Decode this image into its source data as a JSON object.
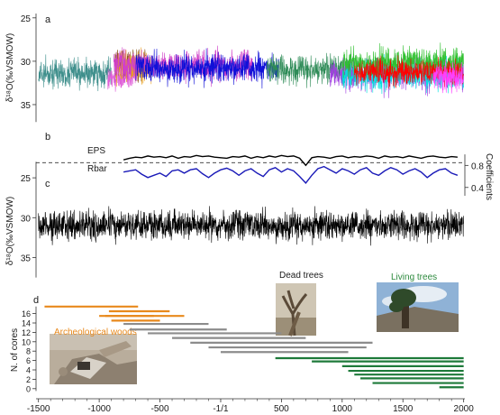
{
  "chart_data": [
    {
      "panel": "a",
      "type": "line",
      "ylabel": "δ¹⁸O(‰VSMOW)",
      "y_ticks": [
        25,
        30,
        35
      ],
      "ylim": [
        37.5,
        24.5
      ],
      "y_inverted": true,
      "xlim": [
        -1520,
        2010
      ],
      "series": [
        {
          "start": -1500,
          "end": -900,
          "mean": 31.4,
          "amp": 2.8,
          "color": "#3f8f8c"
        },
        {
          "start": -870,
          "end": -620,
          "mean": 30.3,
          "amp": 3.4,
          "color": "#8b5a1e"
        },
        {
          "start": -930,
          "end": -700,
          "mean": 31.8,
          "amp": 2.4,
          "color": "#e060d8"
        },
        {
          "start": -860,
          "end": -560,
          "mean": 30.6,
          "amp": 3.2,
          "color": "#e8a020"
        },
        {
          "start": -880,
          "end": 260,
          "mean": 30.5,
          "amp": 3.0,
          "color": "#d040c8"
        },
        {
          "start": -700,
          "end": 480,
          "mean": 30.8,
          "amp": 3.0,
          "color": "#1010d8"
        },
        {
          "start": 380,
          "end": 1100,
          "mean": 31.0,
          "amp": 3.0,
          "color": "#2e8b57"
        },
        {
          "start": 900,
          "end": 2000,
          "mean": 31.5,
          "amp": 3.2,
          "color": "#a040e0"
        },
        {
          "start": 1000,
          "end": 2000,
          "mean": 31.6,
          "amp": 3.2,
          "color": "#00e0e0"
        },
        {
          "start": 1000,
          "end": 2000,
          "mean": 30.2,
          "amp": 3.0,
          "color": "#30c030"
        },
        {
          "start": 1100,
          "end": 2000,
          "mean": 31.3,
          "amp": 2.6,
          "color": "#ff0000"
        },
        {
          "start": 1750,
          "end": 2000,
          "mean": 31.8,
          "amp": 2.8,
          "color": "#ff40ff"
        }
      ]
    },
    {
      "panel": "b",
      "type": "line",
      "ylabel": "Coefficients",
      "y_ticks": [
        0.4,
        0.8
      ],
      "ylim": [
        0.2,
        1.1
      ],
      "threshold": {
        "value": 0.85,
        "style": "dashed"
      },
      "series": [
        {
          "name": "EPS",
          "color": "#000000",
          "x": [
            -800,
            -750,
            -700,
            -650,
            -600,
            -550,
            -500,
            -450,
            -400,
            -350,
            -300,
            -250,
            -200,
            -150,
            -100,
            -50,
            0,
            50,
            100,
            150,
            200,
            250,
            300,
            350,
            400,
            450,
            500,
            550,
            600,
            650,
            700,
            750,
            800,
            850,
            900,
            950,
            1000,
            1050,
            1100,
            1150,
            1200,
            1250,
            1300,
            1350,
            1400,
            1450,
            1500,
            1550,
            1600,
            1650,
            1700,
            1750,
            1800,
            1850,
            1900,
            1950
          ],
          "y": [
            0.9,
            0.93,
            0.95,
            0.94,
            0.97,
            0.95,
            0.96,
            0.94,
            0.97,
            0.93,
            0.96,
            0.95,
            0.98,
            0.96,
            0.97,
            0.95,
            0.94,
            0.93,
            0.96,
            0.95,
            0.97,
            0.93,
            0.96,
            0.94,
            0.97,
            0.95,
            0.98,
            0.96,
            0.97,
            0.93,
            0.8,
            0.94,
            0.96,
            0.95,
            0.93,
            0.96,
            0.97,
            0.94,
            0.96,
            0.95,
            0.97,
            0.96,
            0.93,
            0.97,
            0.95,
            0.96,
            0.94,
            0.97,
            0.95,
            0.93,
            0.96,
            0.97,
            0.95,
            0.94,
            0.96,
            0.95
          ]
        },
        {
          "name": "Rbar",
          "color": "#1a1ab8",
          "x": [
            -800,
            -750,
            -700,
            -650,
            -600,
            -550,
            -500,
            -450,
            -400,
            -350,
            -300,
            -250,
            -200,
            -150,
            -100,
            -50,
            0,
            50,
            100,
            150,
            200,
            250,
            300,
            350,
            400,
            450,
            500,
            550,
            600,
            650,
            700,
            750,
            800,
            850,
            900,
            950,
            1000,
            1050,
            1100,
            1150,
            1200,
            1250,
            1300,
            1350,
            1400,
            1450,
            1500,
            1550,
            1600,
            1650,
            1700,
            1750,
            1800,
            1850,
            1900,
            1950
          ],
          "y": [
            0.68,
            0.7,
            0.72,
            0.64,
            0.58,
            0.62,
            0.66,
            0.6,
            0.7,
            0.72,
            0.66,
            0.72,
            0.74,
            0.65,
            0.58,
            0.66,
            0.72,
            0.75,
            0.7,
            0.62,
            0.7,
            0.74,
            0.66,
            0.6,
            0.72,
            0.76,
            0.68,
            0.74,
            0.7,
            0.6,
            0.48,
            0.62,
            0.74,
            0.78,
            0.72,
            0.66,
            0.74,
            0.7,
            0.64,
            0.72,
            0.76,
            0.66,
            0.62,
            0.7,
            0.76,
            0.72,
            0.64,
            0.7,
            0.74,
            0.68,
            0.58,
            0.66,
            0.72,
            0.74,
            0.66,
            0.62
          ]
        }
      ]
    },
    {
      "panel": "c",
      "type": "line",
      "ylabel": "δ¹⁸O(‰VSMOW)",
      "y_ticks": [
        25,
        30,
        35
      ],
      "ylim": [
        38,
        22.5
      ],
      "y_inverted": true,
      "series": [
        {
          "start": -1500,
          "end": 2000,
          "mean": 31.0,
          "amp": 3.2,
          "color": "#000000"
        }
      ]
    },
    {
      "panel": "d",
      "type": "bar",
      "ylabel": "N. of cores",
      "y_ticks": [
        0,
        2,
        4,
        6,
        8,
        10,
        12,
        14,
        16
      ],
      "ylim": [
        -1,
        19
      ],
      "xlabel": "",
      "x_ticks": [
        -1500,
        -1000,
        -500,
        0,
        500,
        1000,
        1500,
        2000
      ],
      "x_tick_labels": [
        "-1500",
        "-1000",
        "-500",
        "-1/1",
        "500",
        "1000",
        "1500",
        "2000"
      ],
      "annotations": [
        "Archeological woods",
        "Dead trees",
        "Living trees"
      ],
      "spans": [
        {
          "start": -1450,
          "end": -680,
          "level": 17.5,
          "group": "archeological"
        },
        {
          "start": -920,
          "end": -420,
          "level": 16.5,
          "group": "archeological"
        },
        {
          "start": -1000,
          "end": -550,
          "level": 15.5,
          "group": "archeological"
        },
        {
          "start": -950,
          "end": -300,
          "level": 15.5,
          "group": "archeological"
        },
        {
          "start": -900,
          "end": -500,
          "level": 14.5,
          "group": "archeological"
        },
        {
          "start": -800,
          "end": -100,
          "level": 13.8,
          "group": "dead"
        },
        {
          "start": -750,
          "end": 50,
          "level": 12.6,
          "group": "dead"
        },
        {
          "start": -600,
          "end": 500,
          "level": 11.8,
          "group": "dead"
        },
        {
          "start": -400,
          "end": 700,
          "level": 10.8,
          "group": "dead"
        },
        {
          "start": -250,
          "end": 1250,
          "level": 9.8,
          "group": "dead"
        },
        {
          "start": -100,
          "end": 1200,
          "level": 8.8,
          "group": "dead"
        },
        {
          "start": 0,
          "end": 1050,
          "level": 7.8,
          "group": "dead"
        },
        {
          "start": 450,
          "end": 2000,
          "level": 6.5,
          "group": "living"
        },
        {
          "start": 750,
          "end": 2000,
          "level": 5.8,
          "group": "living"
        },
        {
          "start": 1000,
          "end": 2000,
          "level": 4.8,
          "group": "living"
        },
        {
          "start": 1050,
          "end": 2000,
          "level": 3.8,
          "group": "living"
        },
        {
          "start": 1100,
          "end": 2000,
          "level": 3.0,
          "group": "living"
        },
        {
          "start": 1150,
          "end": 2000,
          "level": 2.2,
          "group": "living"
        },
        {
          "start": 1250,
          "end": 2000,
          "level": 1.2,
          "group": "living"
        },
        {
          "start": 1800,
          "end": 2000,
          "level": 0.3,
          "group": "living"
        }
      ]
    }
  ],
  "panel_letters": [
    "a",
    "b",
    "c",
    "d"
  ],
  "colors": {
    "archeological": "#e8891c",
    "dead": "#8c8c8c",
    "living": "#1e7a3a",
    "living_label": "#2d8a3e",
    "arch_label": "#e8891c"
  }
}
